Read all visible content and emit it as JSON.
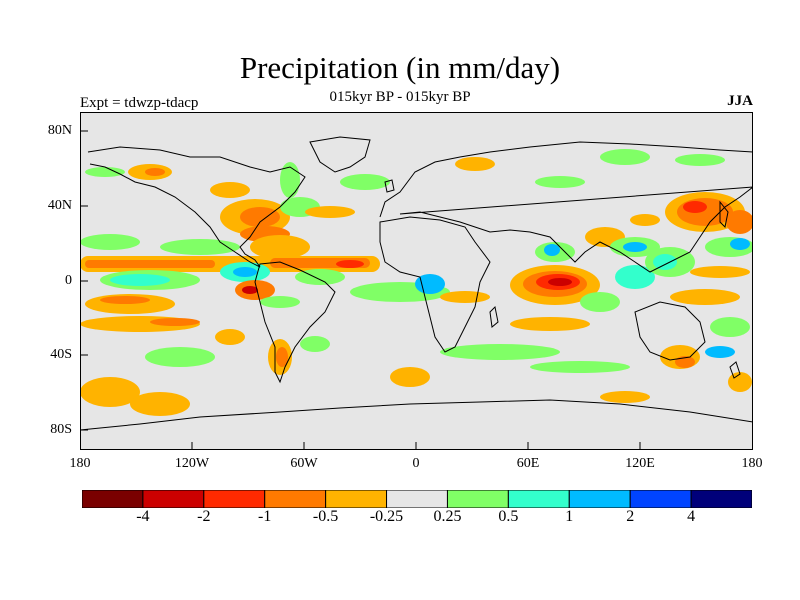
{
  "title": "Precipitation (in mm/day)",
  "subtitle": "015kyr BP - 015kyr BP",
  "left_label": "Expt = tdwzp-tdacp",
  "right_label": "JJA",
  "map": {
    "land_fill": "#e6e6e6",
    "coastline_color": "#000000",
    "lat_ticks": [
      "80N",
      "40N",
      "0",
      "40S",
      "80S"
    ],
    "lon_ticks": [
      "180",
      "120W",
      "60W",
      "0",
      "60E",
      "120E",
      "180"
    ]
  },
  "colorbar": {
    "colors": [
      "#7a0000",
      "#cc0000",
      "#ff2a00",
      "#ff7a00",
      "#ffb300",
      "#e6e6e6",
      "#80ff66",
      "#33ffcc",
      "#00bbff",
      "#0044ff",
      "#00007a"
    ],
    "labels": [
      "-4",
      "-2",
      "-1",
      "-0.5",
      "-0.25",
      "0.25",
      "0.5",
      "1",
      "2",
      "4"
    ]
  }
}
